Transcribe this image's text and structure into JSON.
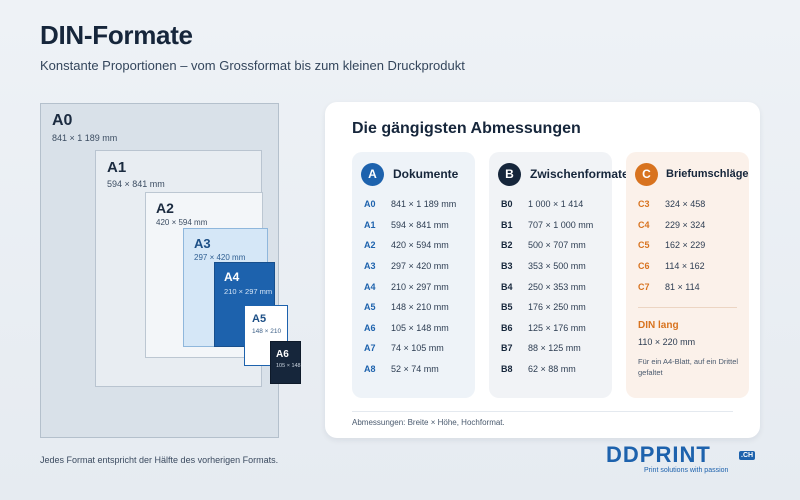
{
  "header": {
    "title": "DIN-Formate",
    "subtitle": "Konstante Proportionen – vom Grossformat bis zum kleinen Druckprodukt"
  },
  "diagram": {
    "sheets": [
      {
        "label": "A0",
        "dim": "841 × 1 189 mm"
      },
      {
        "label": "A1",
        "dim": "594 × 841 mm"
      },
      {
        "label": "A2",
        "dim": "420 × 594 mm"
      },
      {
        "label": "A3",
        "dim": "297 × 420 mm"
      },
      {
        "label": "A4",
        "dim": "210 × 297 mm"
      },
      {
        "label": "A5",
        "dim": "148 × 210"
      },
      {
        "label": "A6",
        "dim": "105 × 148"
      }
    ],
    "caption": "Jedes Format entspricht der Hälfte des vorherigen Formats.",
    "colors": {
      "a4": "#1d62ad",
      "a6": "#16263b",
      "a3": "#d5e7f7"
    }
  },
  "card": {
    "title": "Die gängigsten Abmessungen",
    "columns": [
      {
        "badge": "A",
        "title": "Dokumente",
        "color": "#1d62ad",
        "rows": [
          {
            "k": "A0",
            "v": "841 × 1 189 mm"
          },
          {
            "k": "A1",
            "v": "594 × 841 mm"
          },
          {
            "k": "A2",
            "v": "420 × 594 mm"
          },
          {
            "k": "A3",
            "v": "297 × 420 mm"
          },
          {
            "k": "A4",
            "v": "210 × 297 mm"
          },
          {
            "k": "A5",
            "v": "148 × 210 mm"
          },
          {
            "k": "A6",
            "v": "105 × 148 mm"
          },
          {
            "k": "A7",
            "v": "74 × 105 mm"
          },
          {
            "k": "A8",
            "v": "52 × 74 mm"
          }
        ]
      },
      {
        "badge": "B",
        "title": "Zwischenformate",
        "color": "#16263b",
        "rows": [
          {
            "k": "B0",
            "v": "1 000 × 1 414"
          },
          {
            "k": "B1",
            "v": "707 × 1 000 mm"
          },
          {
            "k": "B2",
            "v": "500 × 707 mm"
          },
          {
            "k": "B3",
            "v": "353 × 500 mm"
          },
          {
            "k": "B4",
            "v": "250 × 353 mm"
          },
          {
            "k": "B5",
            "v": "176 × 250 mm"
          },
          {
            "k": "B6",
            "v": "125 × 176 mm"
          },
          {
            "k": "B7",
            "v": "88 × 125 mm"
          },
          {
            "k": "B8",
            "v": "62 × 88 mm"
          }
        ]
      },
      {
        "badge": "C",
        "title": "Briefumschläge",
        "color": "#d8731f",
        "rows": [
          {
            "k": "C3",
            "v": "324 × 458"
          },
          {
            "k": "C4",
            "v": "229 × 324"
          },
          {
            "k": "C5",
            "v": "162 × 229"
          },
          {
            "k": "C6",
            "v": "114 × 162"
          },
          {
            "k": "C7",
            "v": "81 × 114"
          }
        ],
        "din_lang": {
          "title": "DIN lang",
          "dim": "110 × 220 mm",
          "note": "Für ein A4-Blatt, auf ein Drittel gefaltet"
        }
      }
    ],
    "footnote": "Abmessungen: Breite × Höhe, Hochformat."
  },
  "brand": {
    "name": "DDPRINT",
    "suffix": ".CH",
    "tagline": "Print solutions with passion"
  }
}
